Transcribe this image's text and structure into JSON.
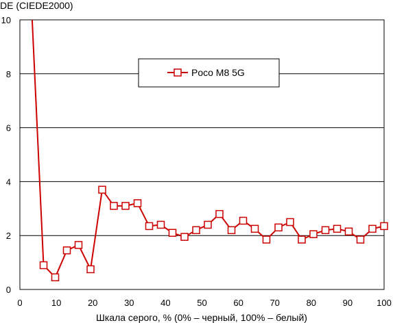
{
  "chart_data": {
    "type": "line",
    "ylabel": "DE (CIEDE2000)",
    "xlabel": "Шкала серого, % (0% – черный, 100% – белый)",
    "xlim": [
      0,
      100
    ],
    "ylim": [
      0,
      10
    ],
    "x_ticks": [
      "0",
      "10",
      "20",
      "30",
      "40",
      "50",
      "60",
      "70",
      "80",
      "90",
      "100"
    ],
    "y_ticks": [
      "0",
      "2",
      "4",
      "6",
      "8",
      "10"
    ],
    "grid": "horizontal",
    "legend_position": "top-center",
    "series": [
      {
        "name": "Poco M8 5G",
        "color": "#cc0000",
        "marker": "square",
        "x": [
          3.2,
          6.5,
          9.7,
          12.9,
          16.1,
          19.4,
          22.6,
          25.8,
          29.0,
          32.3,
          35.5,
          38.7,
          41.9,
          45.2,
          48.4,
          51.6,
          54.8,
          58.1,
          61.3,
          64.5,
          67.7,
          71.0,
          74.2,
          77.4,
          80.6,
          83.9,
          87.1,
          90.3,
          93.5,
          96.8,
          100.0
        ],
        "y": [
          10.5,
          0.9,
          0.45,
          1.45,
          1.65,
          0.75,
          3.7,
          3.1,
          3.1,
          3.2,
          2.35,
          2.4,
          2.1,
          1.95,
          2.2,
          2.4,
          2.8,
          2.2,
          2.55,
          2.25,
          1.85,
          2.3,
          2.5,
          1.85,
          2.05,
          2.2,
          2.25,
          2.15,
          1.85,
          2.25,
          2.35
        ],
        "markers_from_index": 1
      }
    ]
  }
}
